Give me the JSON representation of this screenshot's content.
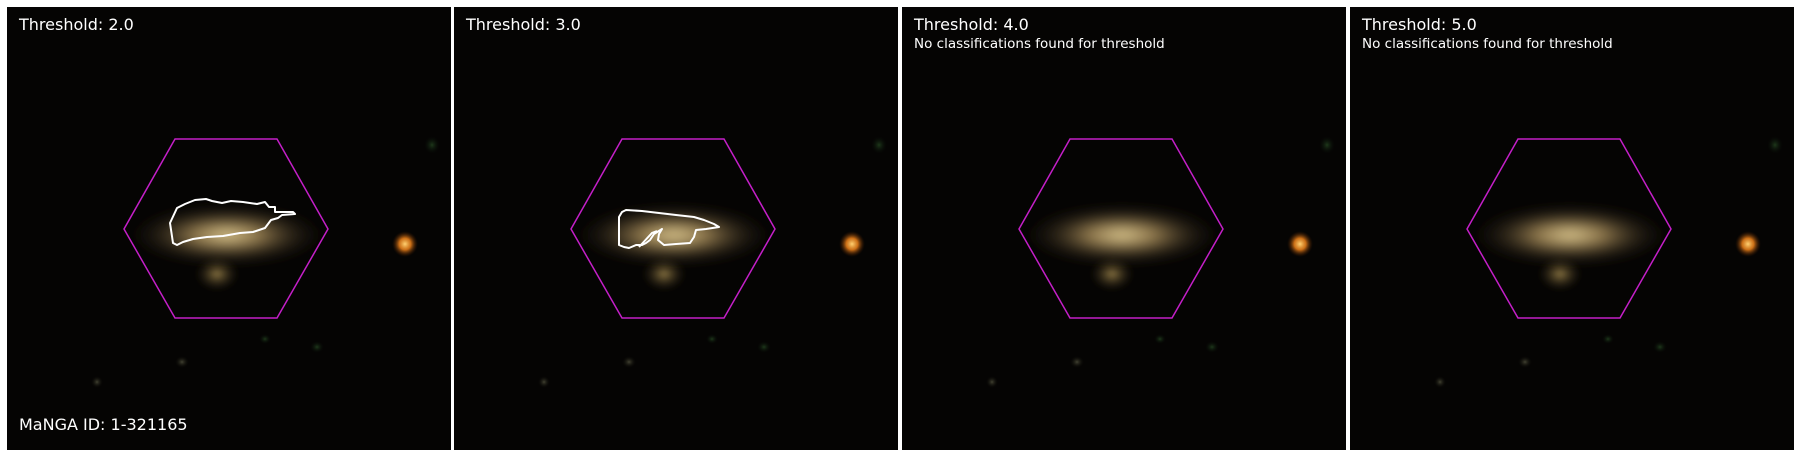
{
  "figure": {
    "manga_id_label": "MaNGA ID: 1-321165",
    "panels": [
      {
        "title": "Threshold: 2.0",
        "message": "",
        "contour_present": true
      },
      {
        "title": "Threshold: 3.0",
        "message": "",
        "contour_present": true
      },
      {
        "title": "Threshold: 4.0",
        "message": "No classifications found for threshold",
        "contour_present": false
      },
      {
        "title": "Threshold: 5.0",
        "message": "No classifications found for threshold",
        "contour_present": false
      }
    ]
  },
  "colors": {
    "background": "#000000",
    "hexagon": "#c41fc8",
    "contour": "#ffffff",
    "galaxy_core": "#e0c98a",
    "star": "#f08a20"
  }
}
